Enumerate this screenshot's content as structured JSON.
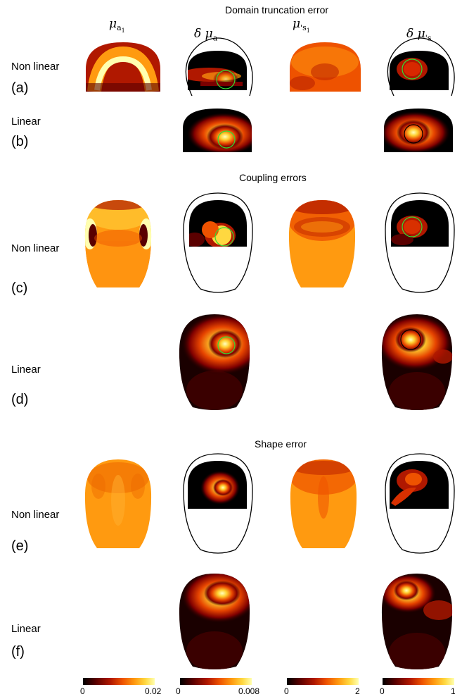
{
  "sections": {
    "domain_truncation": "Domain truncation error",
    "coupling": "Coupling errors",
    "shape": "Shape error"
  },
  "columns": {
    "mu_a": "μa1",
    "delta_mu_a": "δ μa",
    "mu_s": "μ's1",
    "delta_mu_s": "δ μ's"
  },
  "column_symbols": {
    "mu": "μ",
    "delta": "δ",
    "sub_a": "a",
    "sub_s": "s",
    "sub_1": "1",
    "prime": "'"
  },
  "rows": {
    "a": {
      "type": "Non linear",
      "id": "(a)"
    },
    "b": {
      "type": "Linear",
      "id": "(b)"
    },
    "c": {
      "type": "Non linear",
      "id": "(c)"
    },
    "d": {
      "type": "Linear",
      "id": "(d)"
    },
    "e": {
      "type": "Non linear",
      "id": "(e)"
    },
    "f": {
      "type": "Linear",
      "id": "(f)"
    }
  },
  "colorbars": [
    {
      "min": "0",
      "max": "0.02"
    },
    {
      "min": "0",
      "max": "0.008"
    },
    {
      "min": "0",
      "max": "2"
    },
    {
      "min": "0",
      "max": "1"
    }
  ],
  "colormap": [
    "#000000",
    "#5a0000",
    "#b01800",
    "#ee5200",
    "#ff9a10",
    "#ffd840",
    "#ffffb0"
  ],
  "inclusion_colors": {
    "green": "#33dd33",
    "black": "#000000"
  }
}
